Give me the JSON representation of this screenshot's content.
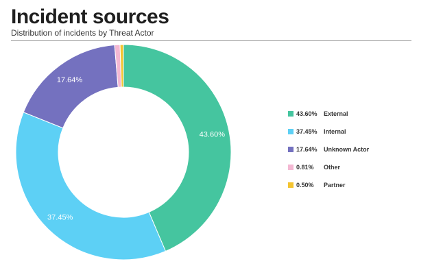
{
  "title": "Incident sources",
  "subtitle": "Distribution of incidents by Threat Actor",
  "chart_data": {
    "type": "pie",
    "donut": true,
    "title": "Incident sources",
    "subtitle": "Distribution of incidents by Threat Actor",
    "legend_position": "right",
    "categories": [
      "External",
      "Internal",
      "Unknown Actor",
      "Other",
      "Partner"
    ],
    "values": [
      43.6,
      37.45,
      17.64,
      0.81,
      0.5
    ],
    "labels": [
      "43.60%",
      "37.45%",
      "17.64%",
      "0.81%",
      "0.50%"
    ],
    "colors": [
      "#45c59f",
      "#5dd0f5",
      "#7471bf",
      "#f4b8d3",
      "#f4c430"
    ]
  }
}
